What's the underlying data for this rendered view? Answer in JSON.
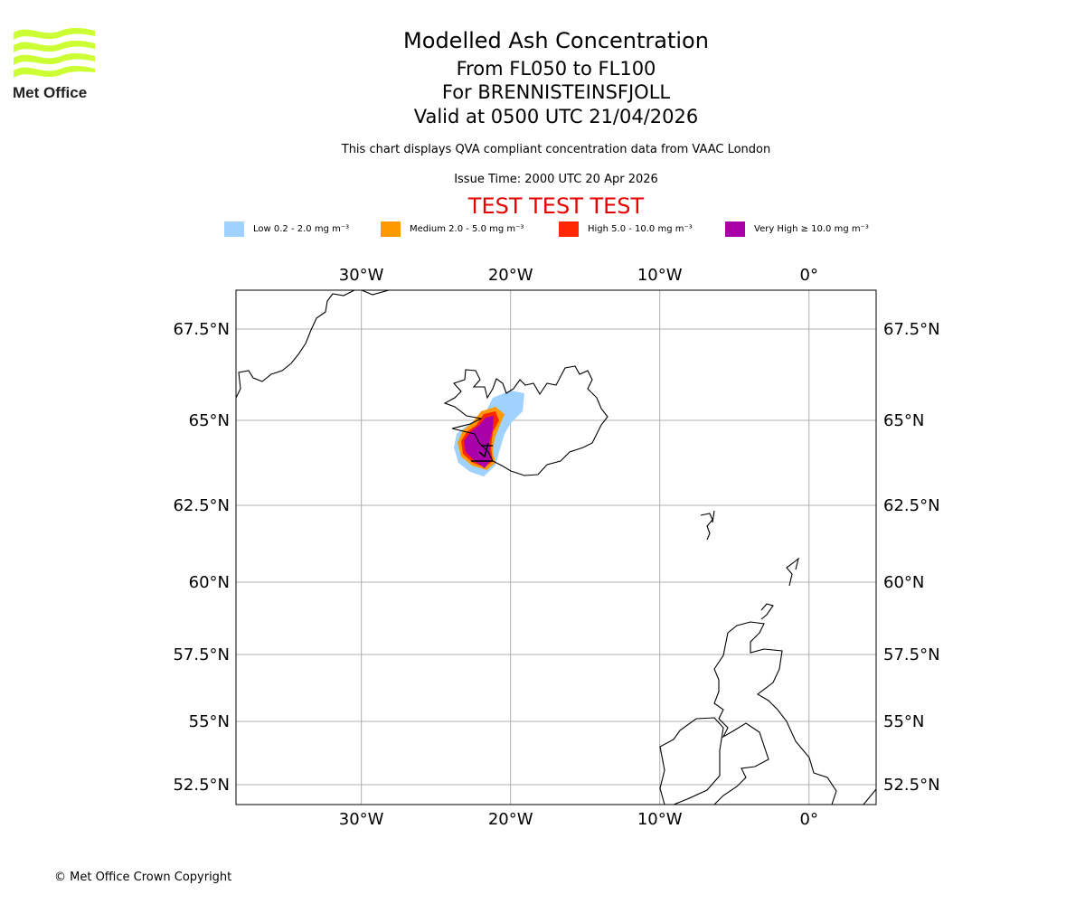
{
  "logo": {
    "text": "Met Office"
  },
  "header": {
    "title": "Modelled Ash Concentration",
    "flight_levels": "From FL050 to FL100",
    "volcano": "For BRENNISTEINSFJOLL",
    "valid": "Valid at 0500 UTC 21/04/2026",
    "description": "This chart displays QVA compliant concentration data from VAAC London",
    "issue_time": "Issue Time: 2000 UTC 20 Apr 2026",
    "test_banner": "TEST TEST TEST"
  },
  "legend": [
    {
      "label": "Low 0.2 - 2.0 mg m⁻³",
      "color": "#a0d2ff"
    },
    {
      "label": "Medium 2.0 - 5.0 mg m⁻³",
      "color": "#ff9900"
    },
    {
      "label": "High 5.0 - 10.0 mg m⁻³",
      "color": "#ff2800"
    },
    {
      "label": "Very High ≥ 10.0 mg m⁻³",
      "color": "#aa00aa"
    }
  ],
  "chart_data": {
    "type": "map",
    "lon_ticks": [
      {
        "value": -30,
        "label": "30°W"
      },
      {
        "value": -20,
        "label": "20°W"
      },
      {
        "value": -10,
        "label": "10°W"
      },
      {
        "value": 0,
        "label": "0°"
      }
    ],
    "lat_ticks": [
      {
        "value": 67.5,
        "label": "67.5°N"
      },
      {
        "value": 65,
        "label": "65°N"
      },
      {
        "value": 62.5,
        "label": "62.5°N"
      },
      {
        "value": 60,
        "label": "60°N"
      },
      {
        "value": 57.5,
        "label": "57.5°N"
      },
      {
        "value": 55,
        "label": "55°N"
      },
      {
        "value": 52.5,
        "label": "52.5°N"
      }
    ],
    "lon_range": [
      -38.4,
      4.5
    ],
    "grid": true
  },
  "footer": {
    "copyright": "© Met Office Crown Copyright"
  }
}
